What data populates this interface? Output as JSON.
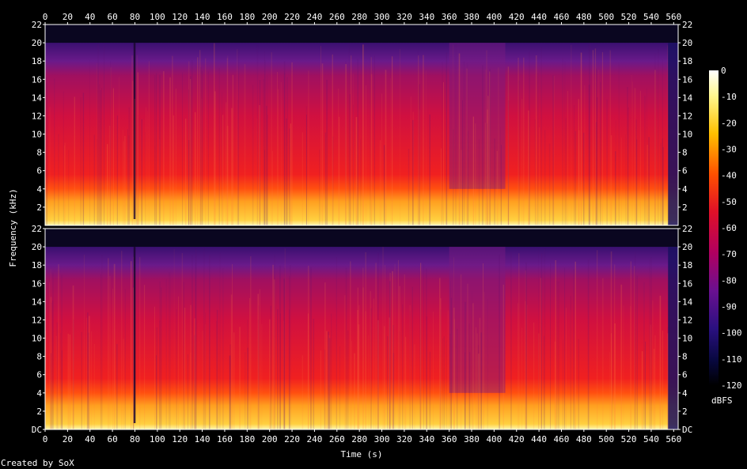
{
  "chart_data": {
    "type": "heatmap",
    "xlabel": "Time (s)",
    "ylabel": "Frequency (kHz)",
    "colorbar_label": "dBFS",
    "x_range": [
      0,
      564
    ],
    "y_range_khz": [
      0,
      22
    ],
    "x_ticks": [
      "0",
      "20",
      "40",
      "60",
      "80",
      "100",
      "120",
      "140",
      "160",
      "180",
      "200",
      "220",
      "240",
      "260",
      "280",
      "300",
      "320",
      "340",
      "360",
      "380",
      "400",
      "420",
      "440",
      "460",
      "480",
      "500",
      "520",
      "540",
      "560"
    ],
    "y_ticks_top": [
      "22",
      "20",
      "18",
      "16",
      "14",
      "12",
      "10",
      "8",
      "6",
      "4",
      "2"
    ],
    "y_ticks_bottom": [
      "22",
      "20",
      "18",
      "16",
      "14",
      "12",
      "10",
      "8",
      "6",
      "4",
      "2",
      "DC"
    ],
    "colorbar_ticks": [
      "0",
      "-10",
      "-20",
      "-30",
      "-40",
      "-50",
      "-60",
      "-70",
      "-80",
      "-90",
      "-100",
      "-110",
      "-120"
    ],
    "colorbar_range": [
      -120,
      0
    ],
    "channels": 2,
    "lowpass_cutoff_khz": 20,
    "quiet_segments_s": [
      [
        76,
        80
      ],
      [
        360,
        410
      ]
    ],
    "fade_out_start_s": 555
  },
  "footer": {
    "credit": "Created by SoX"
  }
}
